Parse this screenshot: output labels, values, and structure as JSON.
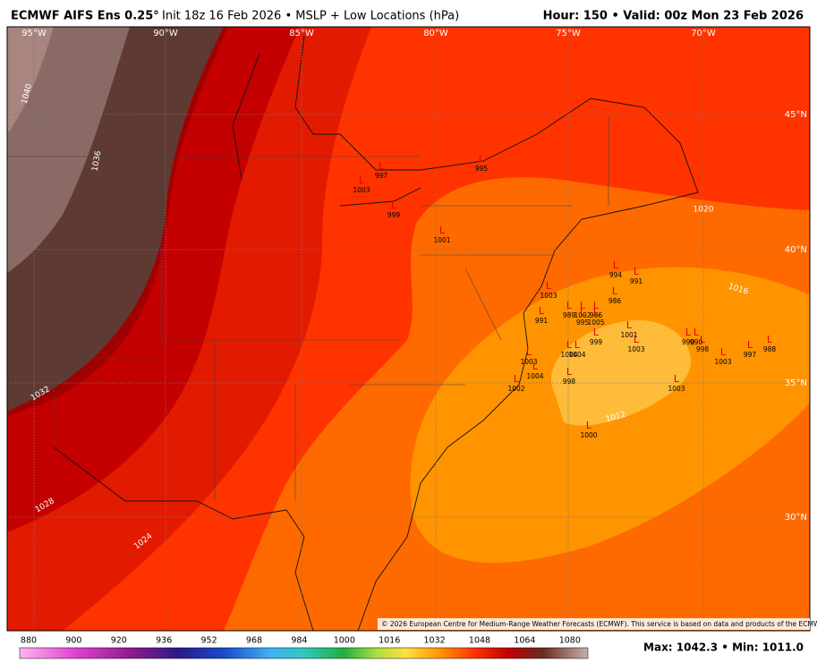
{
  "header": {
    "title": "ECMWF AIFS Ens 0.25°",
    "subtitle": "Init 18z 16 Feb 2026 • MSLP + Low Locations (hPa)",
    "valid": "Hour: 150 • Valid: 00z Mon 23 Feb 2026"
  },
  "map": {
    "longitude_labels": [
      "95°W",
      "90°W",
      "85°W",
      "80°W",
      "75°W",
      "70°W"
    ],
    "latitude_labels": [
      "45°N",
      "40°N",
      "35°N",
      "30°N"
    ],
    "isobar_labels": [
      1040,
      1036,
      1032,
      1028,
      1024,
      1020,
      1016,
      1012
    ],
    "low_marker": "L",
    "low_pressures": [
      997,
      1003,
      999,
      995,
      1001,
      994,
      991,
      1003,
      986,
      989,
      1002,
      986,
      995,
      1005,
      991,
      999,
      1001,
      1003,
      1004,
      1004,
      990,
      990,
      998,
      997,
      988,
      1003,
      1003,
      1004,
      1002,
      998,
      1003,
      1000
    ],
    "copyright": "© 2026 European Centre for Medium-Range Weather Forecasts (ECMWF). This service is based on data and products of the ECMWF."
  },
  "colorbar": {
    "ticks": [
      880,
      900,
      920,
      936,
      952,
      968,
      984,
      1000,
      1016,
      1032,
      1048,
      1064,
      1080
    ]
  },
  "footer": {
    "stats": "Max: 1042.3 • Min: 1011.0"
  }
}
